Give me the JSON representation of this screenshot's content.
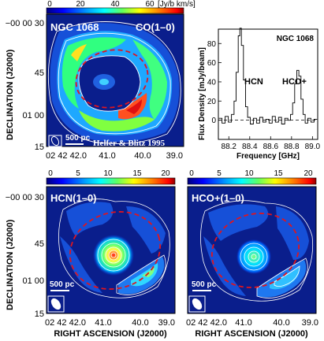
{
  "top_left": {
    "galaxy": "NGC 1068",
    "line": "CO(1–0)",
    "colorbar_ticks": [
      "0",
      "20",
      "40",
      "60"
    ],
    "colorbar_unit": "[Jy/b km/s]",
    "scale_label": "500 pc",
    "credit": "Helfer & Blitz 1995",
    "dec_ticks": [
      "−00 00 30",
      "45",
      "01 00",
      "15"
    ],
    "ra_ticks": [
      "02 42 42.0",
      "41.0",
      "40.0",
      "39.0"
    ]
  },
  "spectrum": {
    "title": "NGC 1068",
    "ylabel": "Flux Density [mJy/beam]",
    "xlabel": "Frequency [GHz]",
    "y_ticks": [
      "0",
      "20",
      "40",
      "60",
      "80"
    ],
    "x_ticks": [
      "88.2",
      "88.4",
      "88.6",
      "88.8",
      "89.0"
    ],
    "label_hcn": "HCN",
    "label_hcop": "HCO+"
  },
  "bottom": {
    "colorbar_ticks": [
      "0",
      "5",
      "10",
      "15",
      "20"
    ],
    "hcn_label": "HCN(1–0)",
    "hcop_label": "HCO+(1–0)",
    "scale_label": "500 pc",
    "dec_ticks": [
      "−00 00 30",
      "45",
      "01 00",
      "15"
    ],
    "ra_ticks": [
      "02 42 42.0",
      "41.0",
      "40.0",
      "39.0"
    ],
    "xlabel": "RIGHT ASCENSION (J2000)"
  },
  "shared": {
    "dec_label": "DECLINATION (J2000)"
  },
  "colors": {
    "background_map": "#0a1e8c",
    "dashed_ellipse": "#e0141e",
    "contour": "#ffffff"
  },
  "chart_data": {
    "type": "line",
    "title": "NGC 1068",
    "xlabel": "Frequency [GHz]",
    "ylabel": "Flux Density [mJy/beam]",
    "xlim": [
      88.1,
      89.05
    ],
    "ylim": [
      -20,
      95
    ],
    "series": [
      {
        "x": [
          88.12,
          88.15,
          88.18,
          88.21,
          88.24,
          88.26,
          88.28,
          88.3,
          88.31,
          88.33,
          88.35,
          88.37,
          88.39,
          88.42,
          88.45,
          88.48,
          88.51,
          88.54,
          88.57,
          88.6,
          88.63,
          88.66,
          88.69,
          88.72,
          88.75,
          88.78,
          88.8,
          88.82,
          88.84,
          88.86,
          88.88,
          88.9,
          88.92,
          88.94,
          88.97,
          89.0,
          89.03
        ],
        "y": [
          2,
          -3,
          4,
          -2,
          6,
          20,
          50,
          88,
          96,
          78,
          42,
          14,
          3,
          -4,
          2,
          -3,
          3,
          -2,
          1,
          -3,
          4,
          -2,
          3,
          -4,
          2,
          0,
          6,
          18,
          38,
          52,
          46,
          22,
          6,
          -3,
          2,
          -2,
          1
        ]
      }
    ],
    "annotations": [
      "HCN",
      "HCO+"
    ]
  }
}
